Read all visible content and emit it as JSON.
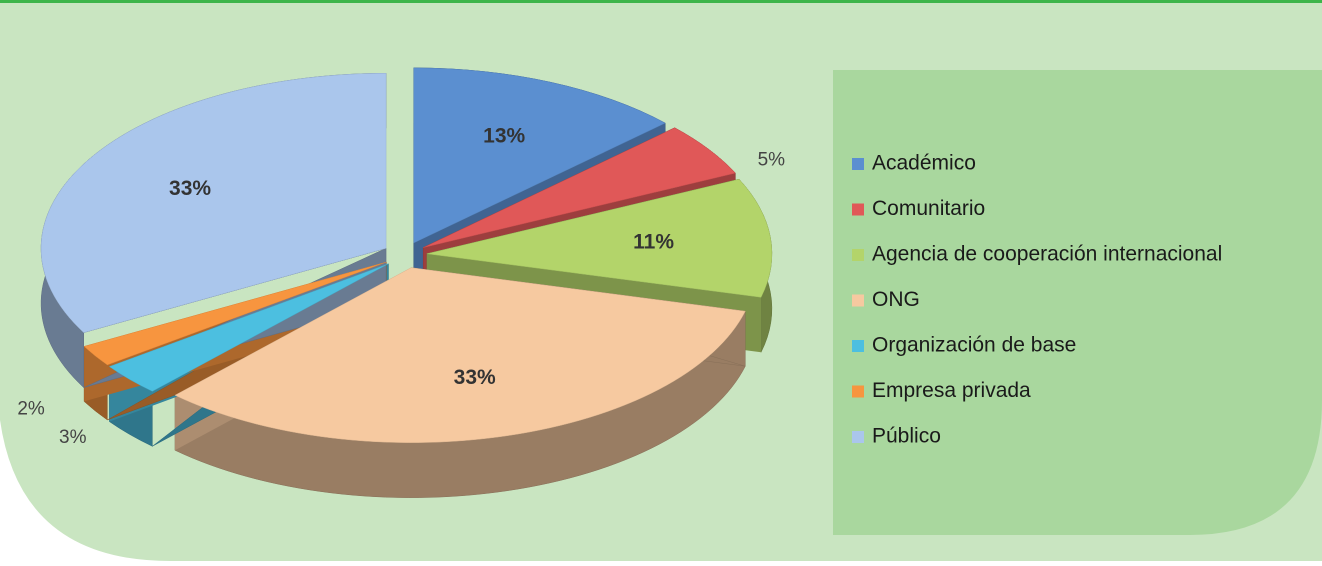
{
  "chart_data": {
    "type": "pie",
    "categories": [
      "Académico",
      "Comunitario",
      "Agencia de cooperación internacional",
      "ONG",
      "Organización de base",
      "Empresa privada",
      "Público"
    ],
    "values": [
      13,
      5,
      11,
      33,
      3,
      2,
      33
    ],
    "value_labels": [
      "13%",
      "5%",
      "11%",
      "33%",
      "3%",
      "2%",
      "33%"
    ],
    "colors": [
      "#5b8fd0",
      "#e05858",
      "#b3d46a",
      "#f6c9a0",
      "#4cbfe0",
      "#f7953f",
      "#aac6ec"
    ]
  }
}
